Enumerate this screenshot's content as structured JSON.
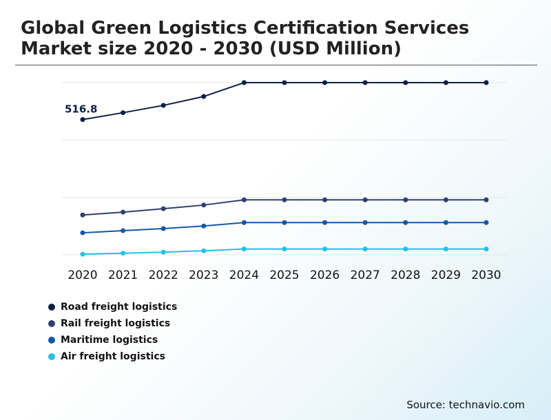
{
  "chart_data": {
    "type": "line",
    "title": "Global Green Logistics Certification Services Market size 2020 - 2030 (USD Million)",
    "categories": [
      "2020",
      "2021",
      "2022",
      "2023",
      "2024",
      "2025",
      "2026",
      "2027",
      "2028",
      "2029",
      "2030"
    ],
    "ylim": [
      0,
      700
    ],
    "grid": true,
    "legend_position": "bottom-left",
    "series": [
      {
        "name": "Road freight logistics",
        "color": "#0b1f44",
        "values": [
          516.8,
          543,
          571,
          605,
          658,
          658,
          658,
          658,
          658,
          658,
          658
        ]
      },
      {
        "name": "Rail freight logistics",
        "color": "#2e3f6e",
        "values": [
          152,
          163,
          176,
          190,
          210,
          210,
          210,
          210,
          210,
          210,
          210
        ]
      },
      {
        "name": "Maritime logistics",
        "color": "#1358a6",
        "values": [
          84,
          92,
          100,
          110,
          123,
          123,
          123,
          123,
          123,
          123,
          123
        ]
      },
      {
        "name": "Air freight logistics",
        "color": "#1ec3e6",
        "values": [
          2,
          6,
          10,
          15,
          22,
          22,
          22,
          22,
          22,
          22,
          22
        ]
      }
    ],
    "annotations": [
      {
        "series": 0,
        "index": 0,
        "label": "516.8"
      }
    ]
  },
  "source": "Source: technavio.com"
}
